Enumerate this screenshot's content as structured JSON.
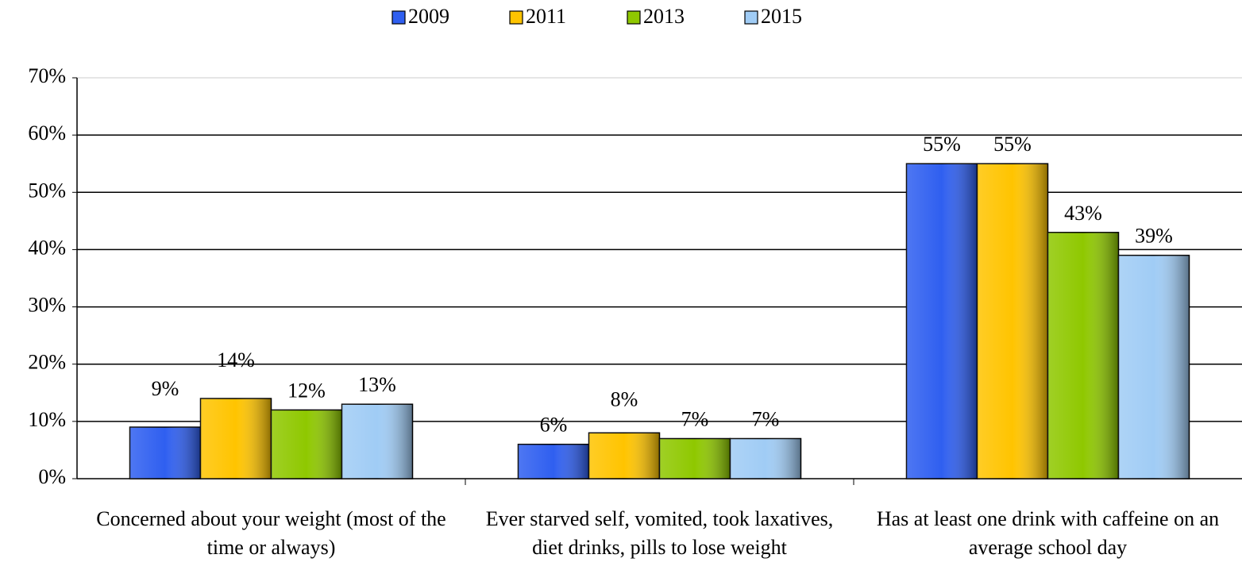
{
  "chart_data": {
    "type": "bar",
    "categories": [
      "Concerned about your weight (most of the time or always)",
      "Ever starved self, vomited, took laxatives, diet drinks, pills to lose weight",
      "Has at least one drink with caffeine on an average school day"
    ],
    "series": [
      {
        "name": "2009",
        "color": "#2f5ff0",
        "values": [
          9,
          6,
          55
        ],
        "value_labels": [
          "9%",
          "6%",
          "55%"
        ]
      },
      {
        "name": "2011",
        "color": "#ffc400",
        "values": [
          14,
          8,
          55
        ],
        "value_labels": [
          "14%",
          "8%",
          "55%"
        ]
      },
      {
        "name": "2013",
        "color": "#8fc800",
        "values": [
          12,
          7,
          43
        ],
        "value_labels": [
          "12%",
          "7%",
          "43%"
        ]
      },
      {
        "name": "2015",
        "color": "#a0ccf5",
        "values": [
          13,
          7,
          39
        ],
        "value_labels": [
          "13%",
          "7%",
          "39%"
        ]
      }
    ],
    "ylim": [
      0,
      70
    ],
    "yticks": [
      {
        "value": 0,
        "label": "0%"
      },
      {
        "value": 10,
        "label": "10%"
      },
      {
        "value": 20,
        "label": "20%"
      },
      {
        "value": 30,
        "label": "30%"
      },
      {
        "value": 40,
        "label": "40%"
      },
      {
        "value": 50,
        "label": "50%"
      },
      {
        "value": 60,
        "label": "60%"
      },
      {
        "value": 70,
        "label": "70%"
      }
    ],
    "grid": true,
    "legend": "top"
  }
}
